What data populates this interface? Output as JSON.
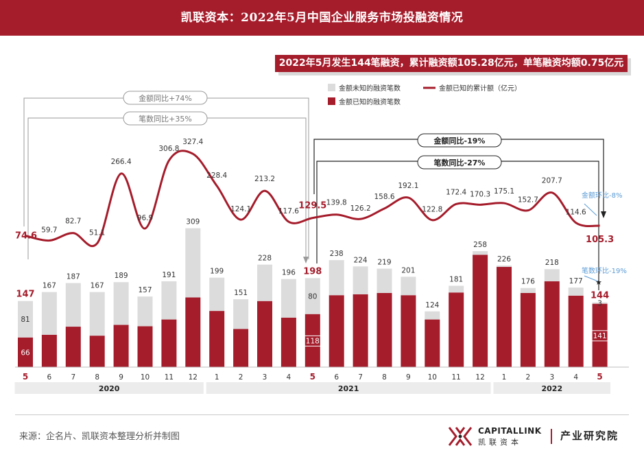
{
  "header": {
    "title": "凯联资本：2022年5月中国企业服务市场投融资情况"
  },
  "summary": {
    "text": "2022年5月发生144笔融资，累计融资额105.28亿元，单笔融资均额0.75亿元"
  },
  "legend": {
    "unknown_label": "金额未知的融资笔数",
    "known_label": "金额已知的融资笔数",
    "amount_label": "金额已知的累计额（亿元）"
  },
  "annotations": {
    "yoy_amount_2021": "金额同比+74%",
    "yoy_count_2021": "笔数同比+35%",
    "yoy_amount_2022": "金额同比-19%",
    "yoy_count_2022": "笔数同比-27%",
    "mom_amount": "金额环比-8%",
    "mom_count": "笔数环比-19%"
  },
  "footer": {
    "source": "来源：企名片、凯联资本整理分析并制图",
    "brand_en": "CAPITALLINK",
    "brand_cn": "凯联资本",
    "brand_inst": "产业研究院"
  },
  "colors": {
    "brand": "#a51c2b",
    "unknown": "#dcdcdc",
    "mom": "#5b9bd5"
  },
  "chart_data": {
    "type": "bar",
    "categories": [
      "5",
      "6",
      "7",
      "8",
      "9",
      "10",
      "11",
      "12",
      "1",
      "2",
      "3",
      "4",
      "5",
      "6",
      "7",
      "8",
      "9",
      "10",
      "11",
      "12",
      "1",
      "2",
      "3",
      "4",
      "5"
    ],
    "year_groups": [
      {
        "label": "2020",
        "start": 0,
        "end": 7
      },
      {
        "label": "2021",
        "start": 8,
        "end": 19
      },
      {
        "label": "2022",
        "start": 20,
        "end": 24
      }
    ],
    "highlight_indices": [
      0,
      12,
      24
    ],
    "series": [
      {
        "name": "金额已知的融资笔数",
        "values": [
          66,
          72,
          90,
          70,
          94,
          91,
          106,
          155,
          125,
          85,
          147,
          110,
          118,
          160,
          162,
          165,
          160,
          106,
          166,
          250,
          223,
          165,
          191,
          159,
          141
        ]
      },
      {
        "name": "金额未知的融资笔数",
        "values": [
          81,
          95,
          97,
          97,
          95,
          66,
          85,
          154,
          74,
          66,
          81,
          86,
          80,
          78,
          62,
          54,
          41,
          18,
          15,
          8,
          3,
          11,
          27,
          18,
          3
        ]
      },
      {
        "name": "金额已知的累计额（亿元）",
        "values": [
          74.6,
          59.7,
          82.7,
          51.1,
          266.4,
          96.9,
          306.8,
          327.4,
          228.4,
          124.1,
          213.2,
          117.6,
          129.5,
          139.8,
          126.2,
          158.6,
          192.1,
          122.8,
          172.4,
          170.3,
          175.1,
          152.7,
          207.7,
          114.6,
          105.3
        ]
      }
    ],
    "totals": [
      147,
      167,
      187,
      167,
      189,
      157,
      191,
      309,
      199,
      151,
      228,
      196,
      198,
      238,
      224,
      219,
      201,
      124,
      181,
      258,
      226,
      176,
      218,
      177,
      144
    ],
    "total_labels": [
      "147",
      "167",
      "187",
      "167",
      "189",
      "157",
      "191",
      "309",
      "199",
      "151",
      "228",
      "196",
      "198",
      "238",
      "224",
      "219",
      "201",
      "124",
      "181",
      "258",
      "226",
      "176",
      "218",
      "177",
      "144"
    ],
    "amount_labels": [
      "74.6",
      "59.7",
      "82.7",
      "51.1",
      "266.4",
      "96.9",
      "306.8",
      "327.4",
      "228.4",
      "124.1",
      "213.2",
      "117.6",
      "129.5",
      "139.8",
      "126.2",
      "158.6",
      "192.1",
      "122.8",
      "172.4",
      "170.3",
      "175.1",
      "152.7",
      "207.7",
      "114.6",
      "105.3"
    ],
    "inner_labels": [
      {
        "index": 0,
        "unknown": "81",
        "known": "66"
      },
      {
        "index": 12,
        "unknown": "80",
        "known": "118"
      },
      {
        "index": 24,
        "unknown": "3",
        "known": "141"
      }
    ],
    "legend_position": "top-center"
  }
}
